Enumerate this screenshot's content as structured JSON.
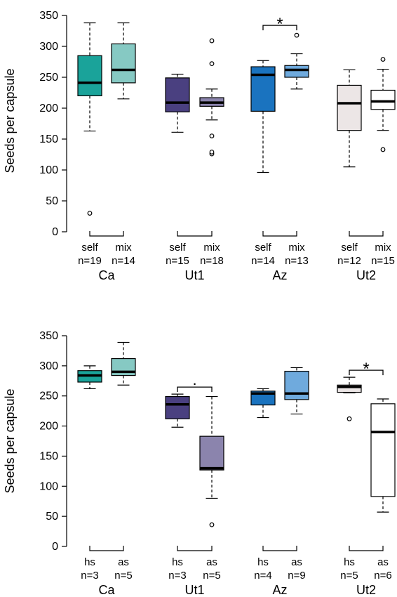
{
  "chart_data": [
    {
      "type": "boxplot",
      "ylabel": "Seeds per capsule",
      "ylim": [
        0,
        350
      ],
      "yticks": [
        0,
        50,
        100,
        150,
        200,
        250,
        300,
        350
      ],
      "groups": [
        {
          "name": "Ca",
          "boxes": [
            {
              "label": "self",
              "n": "n=19",
              "color": "#1aa39a",
              "whisker_low": 163,
              "q1": 220,
              "median": 241,
              "q3": 285,
              "whisker_high": 338,
              "outliers": [
                30
              ]
            },
            {
              "label": "mix",
              "n": "n=14",
              "color": "#86c9c3",
              "whisker_low": 215,
              "q1": 241,
              "median": 262,
              "q3": 304,
              "whisker_high": 338,
              "outliers": []
            }
          ],
          "significance": ""
        },
        {
          "name": "Ut1",
          "boxes": [
            {
              "label": "self",
              "n": "n=15",
              "color": "#4a4080",
              "whisker_low": 161,
              "q1": 194,
              "median": 209,
              "q3": 249,
              "whisker_high": 255,
              "outliers": []
            },
            {
              "label": "mix",
              "n": "n=18",
              "color": "#8b84ad",
              "whisker_low": 181,
              "q1": 203,
              "median": 209,
              "q3": 217,
              "whisker_high": 231,
              "outliers": [
                126,
                129,
                155,
                272,
                309
              ]
            }
          ],
          "significance": ""
        },
        {
          "name": "Az",
          "boxes": [
            {
              "label": "self",
              "n": "n=14",
              "color": "#1a73bf",
              "whisker_low": 96,
              "q1": 195,
              "median": 254,
              "q3": 267,
              "whisker_high": 277,
              "outliers": []
            },
            {
              "label": "mix",
              "n": "n=13",
              "color": "#6faadd",
              "whisker_low": 231,
              "q1": 250,
              "median": 262,
              "q3": 269,
              "whisker_high": 288,
              "outliers": [
                318
              ]
            }
          ],
          "significance": "*"
        },
        {
          "name": "Ut2",
          "boxes": [
            {
              "label": "self",
              "n": "n=12",
              "color": "#ece6e6",
              "whisker_low": 105,
              "q1": 164,
              "median": 208,
              "q3": 237,
              "whisker_high": 262,
              "outliers": []
            },
            {
              "label": "mix",
              "n": "n=15",
              "color": "#ffffff",
              "whisker_low": 164,
              "q1": 198,
              "median": 211,
              "q3": 229,
              "whisker_high": 263,
              "outliers": [
                133,
                279
              ]
            }
          ],
          "significance": ""
        }
      ]
    },
    {
      "type": "boxplot",
      "ylabel": "Seeds per capsule",
      "ylim": [
        0,
        350
      ],
      "yticks": [
        0,
        50,
        100,
        150,
        200,
        250,
        300,
        350
      ],
      "groups": [
        {
          "name": "Ca",
          "boxes": [
            {
              "label": "hs",
              "n": "n=3",
              "color": "#1aa39a",
              "whisker_low": 262,
              "q1": 273,
              "median": 284,
              "q3": 292,
              "whisker_high": 300,
              "outliers": []
            },
            {
              "label": "as",
              "n": "n=5",
              "color": "#86c9c3",
              "whisker_low": 268,
              "q1": 284,
              "median": 290,
              "q3": 312,
              "whisker_high": 339,
              "outliers": []
            }
          ],
          "significance": ""
        },
        {
          "name": "Ut1",
          "boxes": [
            {
              "label": "hs",
              "n": "n=3",
              "color": "#4a4080",
              "whisker_low": 198,
              "q1": 212,
              "median": 236,
              "q3": 249,
              "whisker_high": 253,
              "outliers": []
            },
            {
              "label": "as",
              "n": "n=5",
              "color": "#8b84ad",
              "whisker_low": 80,
              "q1": 127,
              "median": 130,
              "q3": 183,
              "whisker_high": 249,
              "outliers": [
                36
              ]
            }
          ],
          "significance": "."
        },
        {
          "name": "Az",
          "boxes": [
            {
              "label": "hs",
              "n": "n=4",
              "color": "#1a73bf",
              "whisker_low": 214,
              "q1": 235,
              "median": 254,
              "q3": 258,
              "whisker_high": 262,
              "outliers": []
            },
            {
              "label": "as",
              "n": "n=9",
              "color": "#6faadd",
              "whisker_low": 220,
              "q1": 244,
              "median": 254,
              "q3": 291,
              "whisker_high": 297,
              "outliers": []
            }
          ],
          "significance": ""
        },
        {
          "name": "Ut2",
          "boxes": [
            {
              "label": "hs",
              "n": "n=5",
              "color": "#ece6e6",
              "whisker_low": 255,
              "q1": 256,
              "median": 265,
              "q3": 268,
              "whisker_high": 281,
              "outliers": [
                212
              ]
            },
            {
              "label": "as",
              "n": "n=6",
              "color": "#ffffff",
              "whisker_low": 57,
              "q1": 83,
              "median": 190,
              "q3": 237,
              "whisker_high": 245,
              "outliers": []
            }
          ],
          "significance": "*"
        }
      ]
    }
  ]
}
